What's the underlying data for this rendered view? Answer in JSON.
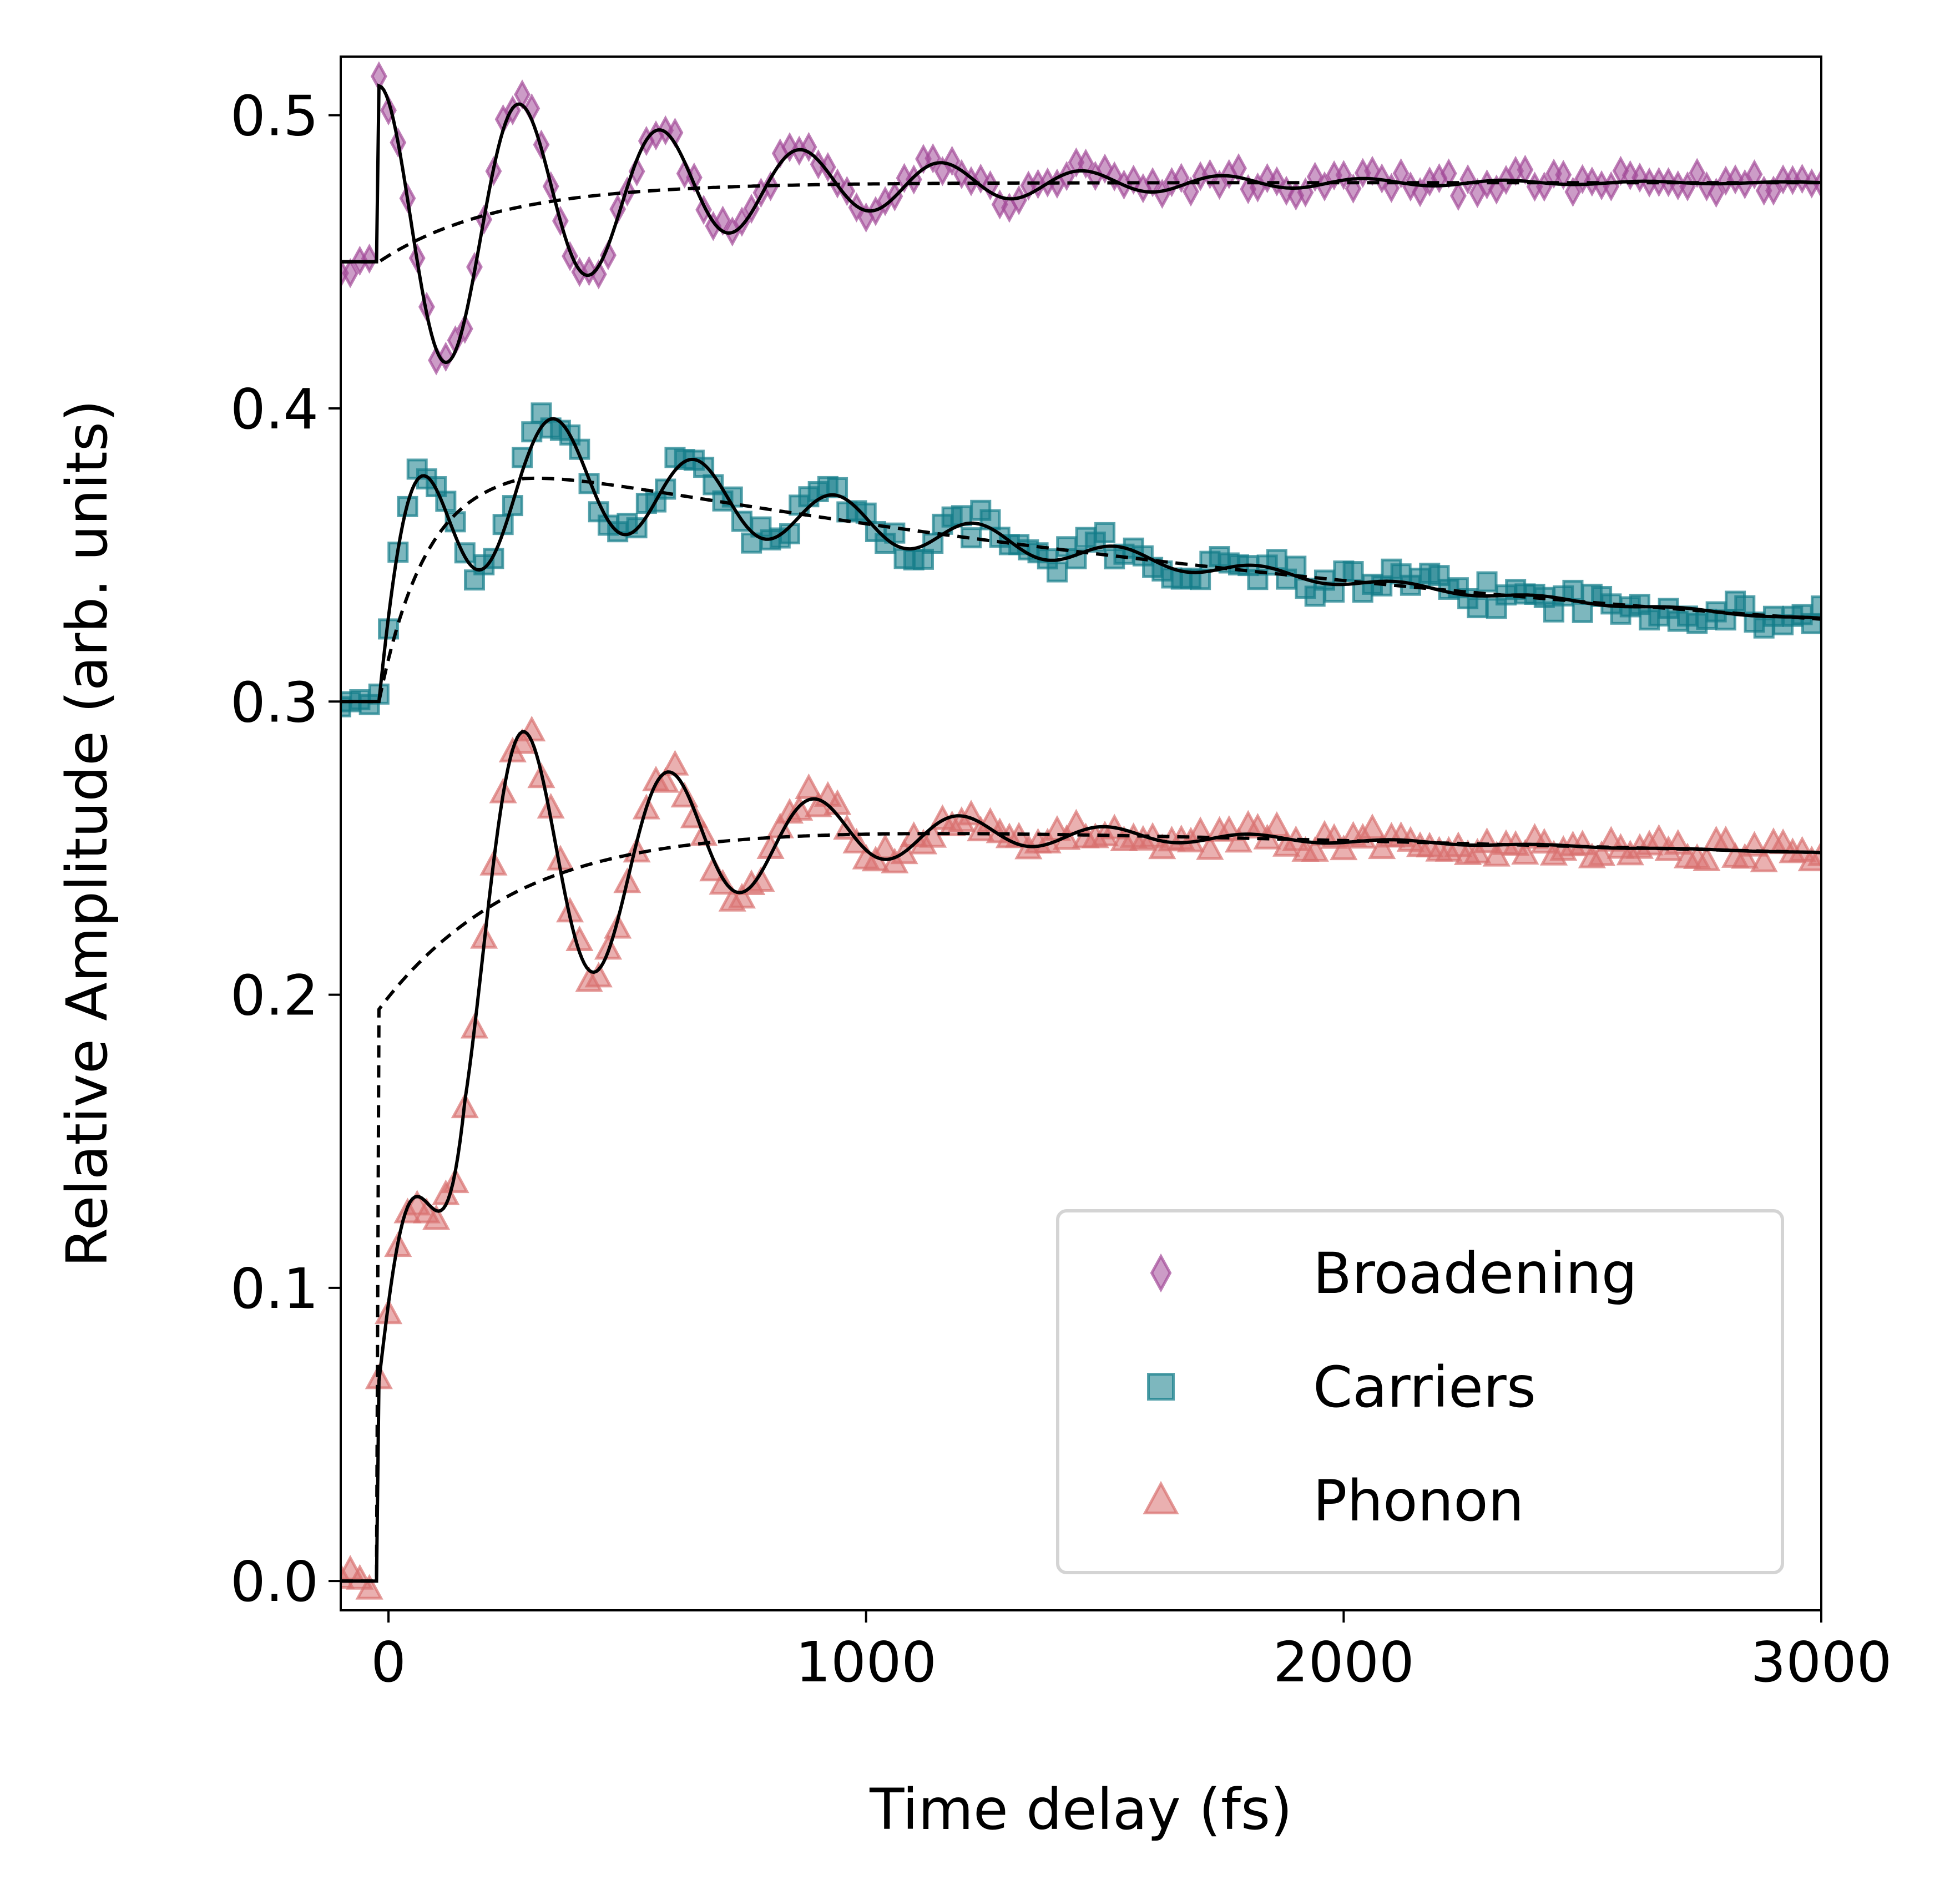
{
  "chart_data": {
    "type": "scatter",
    "xlabel": "Time delay (fs)",
    "ylabel": "Relative Amplitude (arb. units)",
    "xlim": [
      -100,
      3000
    ],
    "ylim": [
      -0.01,
      0.52
    ],
    "xticks": [
      0,
      1000,
      2000,
      3000
    ],
    "xtick_labels": [
      "0",
      "1000",
      "2000",
      "3000"
    ],
    "yticks": [
      0.0,
      0.1,
      0.2,
      0.3,
      0.4,
      0.5
    ],
    "ytick_labels": [
      "0.0",
      "0.1",
      "0.2",
      "0.3",
      "0.4",
      "0.5"
    ],
    "grid": false,
    "legend_position": "lower-right",
    "legend": [
      {
        "label": "Broadening",
        "marker": "diamond",
        "color": "#a24a99"
      },
      {
        "label": "Carriers",
        "marker": "square",
        "color": "#137c89"
      },
      {
        "label": "Phonon",
        "marker": "triangle",
        "color": "#d9706f"
      }
    ],
    "fit_line_color": "#000000",
    "series": [
      {
        "name": "Broadening",
        "color": "#a24a99",
        "marker": "diamond",
        "baseline": 0.45,
        "onset_fs": -20,
        "plateau": 0.477,
        "rise_fs": 250,
        "osc_amplitude": 0.06,
        "osc_period_fs": 295,
        "osc_decay_fs": 550,
        "osc_phase": 1.571,
        "slow_decay_fs": 0,
        "noise": 0.004
      },
      {
        "name": "Carriers",
        "color": "#137c89",
        "marker": "square",
        "baseline": 0.3,
        "onset_fs": -20,
        "plateau": 0.38,
        "rise_fs": 100,
        "osc_amplitude": 0.036,
        "osc_period_fs": 295,
        "osc_decay_fs": 650,
        "osc_phase": 0.0,
        "slow_decay_fs": 2600,
        "slow_floor": 0.3,
        "noise": 0.005
      },
      {
        "name": "Phonon",
        "color": "#d9706f",
        "marker": "triangle",
        "baseline": 0.0,
        "onset_fs": -20,
        "plateau": 0.26,
        "rise_fs": 300,
        "jump": 0.195,
        "osc_amplitude": 0.11,
        "osc_period_fs": 305,
        "osc_decay_fs": 420,
        "osc_phase": 1.571,
        "slow_decay_fs": 60000,
        "noise": 0.004
      }
    ]
  }
}
